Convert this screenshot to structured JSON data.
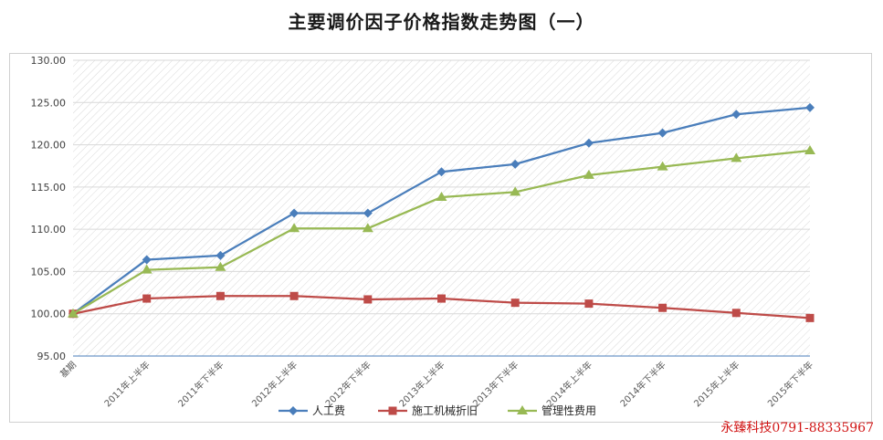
{
  "chart_data": {
    "type": "line",
    "title": "主要调价因子价格指数走势图（一）",
    "categories": [
      "基期",
      "2011年上半年",
      "2011年下半年",
      "2012年上半年",
      "2012年下半年",
      "2013年上半年",
      "2013年下半年",
      "2014年上半年",
      "2014年下半年",
      "2015年上半年",
      "2015年下半年"
    ],
    "ylim": [
      95,
      130
    ],
    "yticks": [
      "95.00",
      "100.00",
      "105.00",
      "110.00",
      "115.00",
      "120.00",
      "125.00",
      "130.00"
    ],
    "grid": true,
    "legend": "bottom",
    "series": [
      {
        "name": "人工费",
        "color": "#4a7ebb",
        "marker": "diamond",
        "values": [
          100.0,
          106.4,
          106.9,
          111.9,
          111.9,
          116.8,
          117.7,
          120.2,
          121.4,
          123.6,
          124.4
        ]
      },
      {
        "name": "施工机械折旧",
        "color": "#be4b48",
        "marker": "square",
        "values": [
          100.0,
          101.8,
          102.1,
          102.1,
          101.7,
          101.8,
          101.3,
          101.2,
          100.7,
          100.1,
          99.5
        ]
      },
      {
        "name": "管理性费用",
        "color": "#98b954",
        "marker": "triangle",
        "values": [
          100.0,
          105.2,
          105.5,
          110.1,
          110.1,
          113.8,
          114.4,
          116.4,
          117.4,
          118.4,
          119.3
        ]
      }
    ]
  },
  "watermark": "永臻科技0791-88335967"
}
